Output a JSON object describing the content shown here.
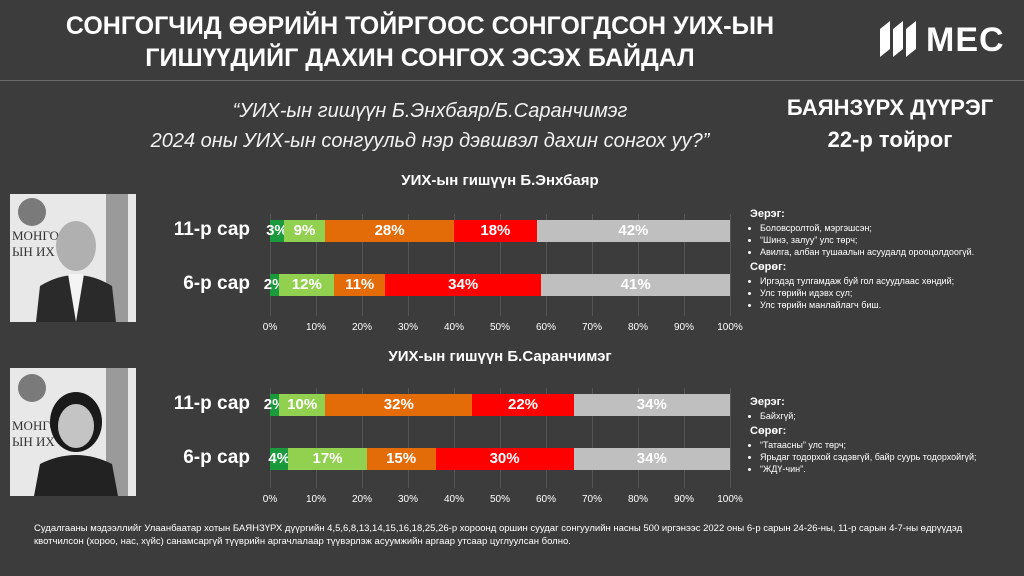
{
  "header": {
    "title_line1": "СОНГОГЧИД ӨӨРИЙН ТОЙРГООС СОНГОГДСОН УИХ-ЫН",
    "title_line2": "ГИШҮҮДИЙГ ДАХИН СОНГОХ ЭСЭХ БАЙДАЛ",
    "logo_text": "MEC"
  },
  "question": {
    "line1": "“УИХ-ын гишүүн Б.Энхбаяр/Б.Саранчимэг",
    "line2": "2024 оны УИХ-ын сонгуульд нэр дэвшвэл дахин сонгох уу?”"
  },
  "district": {
    "line1": "БАЯНЗҮРХ ДҮҮРЭГ",
    "line2": "22-р тойрог"
  },
  "colors": {
    "definitely_yes": "#1a9a3c",
    "probably_yes": "#92d050",
    "probably_no": "#e36c09",
    "definitely_no": "#ff0000",
    "dont_know": "#bfbfbf"
  },
  "chart_data": [
    {
      "type": "bar",
      "orientation": "horizontal-stacked",
      "title": "УИХ-ын гишүүн Б.Энхбаяр",
      "categories": [
        "11-р сар",
        "6-р сар"
      ],
      "series_colors": [
        "#1a9a3c",
        "#92d050",
        "#e36c09",
        "#ff0000",
        "#bfbfbf"
      ],
      "values": [
        [
          3,
          9,
          28,
          18,
          42
        ],
        [
          2,
          12,
          11,
          34,
          41
        ]
      ],
      "labels": [
        [
          "3%",
          "9%",
          "28%",
          "18%",
          "42%"
        ],
        [
          "2%",
          "12%",
          "11%",
          "34%",
          "41%"
        ]
      ],
      "xlim": [
        0,
        100
      ],
      "xticks": [
        "0%",
        "10%",
        "20%",
        "30%",
        "40%",
        "50%",
        "60%",
        "70%",
        "80%",
        "90%",
        "100%"
      ]
    },
    {
      "type": "bar",
      "orientation": "horizontal-stacked",
      "title": "УИХ-ын гишүүн Б.Саранчимэг",
      "categories": [
        "11-р сар",
        "6-р сар"
      ],
      "series_colors": [
        "#1a9a3c",
        "#92d050",
        "#e36c09",
        "#ff0000",
        "#bfbfbf"
      ],
      "values": [
        [
          2,
          10,
          32,
          22,
          34
        ],
        [
          4,
          17,
          15,
          30,
          34
        ]
      ],
      "labels": [
        [
          "2%",
          "10%",
          "32%",
          "22%",
          "34%"
        ],
        [
          "4%",
          "17%",
          "15%",
          "30%",
          "34%"
        ]
      ],
      "xlim": [
        0,
        100
      ],
      "xticks": [
        "0%",
        "10%",
        "20%",
        "30%",
        "40%",
        "50%",
        "60%",
        "70%",
        "80%",
        "90%",
        "100%"
      ]
    }
  ],
  "notes": [
    {
      "positive_heading": "Эерэг:",
      "positive": [
        "Боловсролтой, мэргэшсэн;",
        "“Шинэ, залуу” улс төрч;",
        "Авилга, албан тушаалын асуудалд орооцолдоогүй."
      ],
      "negative_heading": "Сөрөг:",
      "negative": [
        "Иргэдэд тулгамдаж буй гол асуудлаас хөндий;",
        "Улс төрийн идэвх сул;",
        "Улс төрийн манлайлагч биш."
      ]
    },
    {
      "positive_heading": "Эерэг:",
      "positive": [
        "Байхгүй;"
      ],
      "negative_heading": "Сөрөг:",
      "negative": [
        "“Татаасны” улс төрч;",
        "Ярьдаг тодорхой сэдэвгүй, байр суурь тодорхойгүй;",
        "“ЖДҮ-чин”."
      ]
    }
  ],
  "footnote": "Судалгааны мэдээллийг Улаанбаатар хотын БАЯНЗҮРХ дүүргийн 4,5,6,8,13,14,15,16,18,25,26-р хороонд оршин суудаг сонгуулийн насны 500 иргэнээс 2022 оны 6-р сарын 24-26-ны, 11-р сарын 4-7-ны өдрүүдэд квотчилсон (хороо, нас, хүйс) санамсаргүй түүврийн аргачлалаар түүвэрлэж асуумжийн аргаар утсаар цуглуулсан болно."
}
